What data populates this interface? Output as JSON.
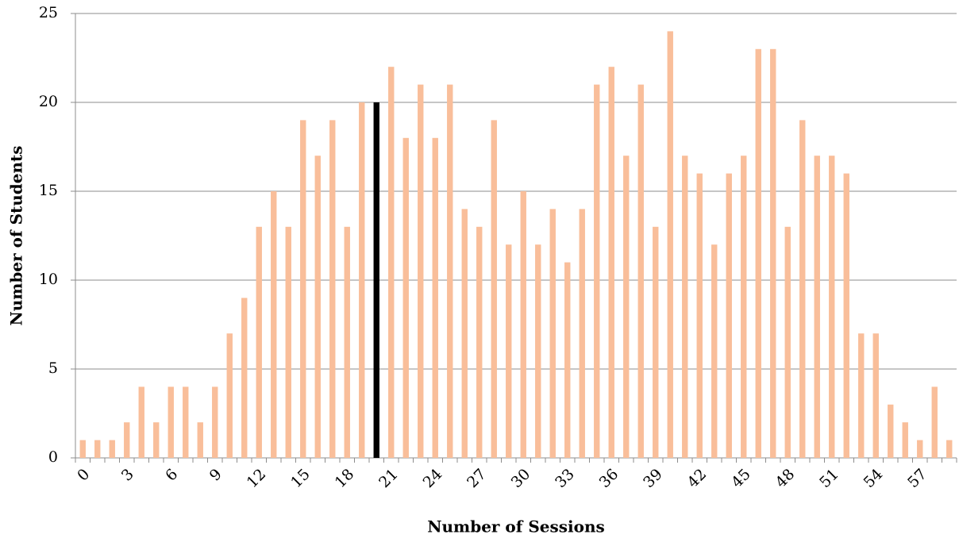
{
  "chart_data": {
    "type": "bar",
    "x_label": "Number of Sessions",
    "y_label": "Number of Students",
    "categories": [
      "0",
      null,
      null,
      "3",
      null,
      null,
      "6",
      null,
      null,
      "9",
      null,
      null,
      "12",
      null,
      null,
      "15",
      null,
      null,
      "18",
      null,
      null,
      "21",
      null,
      null,
      "24",
      null,
      null,
      "27",
      null,
      null,
      "30",
      null,
      null,
      "33",
      null,
      null,
      "36",
      null,
      null,
      "39",
      null,
      null,
      "42",
      null,
      null,
      "45",
      null,
      null,
      "48",
      null,
      null,
      "51",
      null,
      null,
      "54",
      null,
      null,
      "57",
      null,
      null
    ],
    "values": [
      1,
      1,
      1,
      2,
      4,
      2,
      4,
      4,
      2,
      4,
      7,
      9,
      13,
      15,
      13,
      19,
      17,
      19,
      13,
      20,
      20,
      22,
      18,
      21,
      18,
      21,
      14,
      13,
      19,
      12,
      15,
      12,
      14,
      11,
      14,
      21,
      22,
      17,
      21,
      13,
      24,
      17,
      16,
      12,
      16,
      17,
      23,
      23,
      13,
      19,
      17,
      17,
      16,
      7,
      7,
      3,
      2,
      1,
      4,
      1
    ],
    "colors": [
      "#f9be9a",
      "#f9be9a",
      "#f9be9a",
      "#f9be9a",
      "#f9be9a",
      "#f9be9a",
      "#f9be9a",
      "#f9be9a",
      "#f9be9a",
      "#f9be9a",
      "#f9be9a",
      "#f9be9a",
      "#f9be9a",
      "#f9be9a",
      "#f9be9a",
      "#f9be9a",
      "#f9be9a",
      "#f9be9a",
      "#f9be9a",
      "#f9be9a",
      "#000000",
      "#f9be9a",
      "#f9be9a",
      "#f9be9a",
      "#f9be9a",
      "#f9be9a",
      "#f9be9a",
      "#f9be9a",
      "#f9be9a",
      "#f9be9a",
      "#f9be9a",
      "#f9be9a",
      "#f9be9a",
      "#f9be9a",
      "#f9be9a",
      "#f9be9a",
      "#f9be9a",
      "#f9be9a",
      "#f9be9a",
      "#f9be9a",
      "#f9be9a",
      "#f9be9a",
      "#f9be9a",
      "#f9be9a",
      "#f9be9a",
      "#f9be9a",
      "#f9be9a",
      "#f9be9a",
      "#f9be9a",
      "#f9be9a",
      "#f9be9a",
      "#f9be9a",
      "#f9be9a",
      "#f9be9a",
      "#f9be9a",
      "#f9be9a",
      "#f9be9a",
      "#f9be9a",
      "#f9be9a",
      "#f9be9a"
    ],
    "ylim": [
      0,
      25
    ],
    "yticks": [
      0,
      5,
      10,
      15,
      20,
      25
    ],
    "grid": true
  }
}
